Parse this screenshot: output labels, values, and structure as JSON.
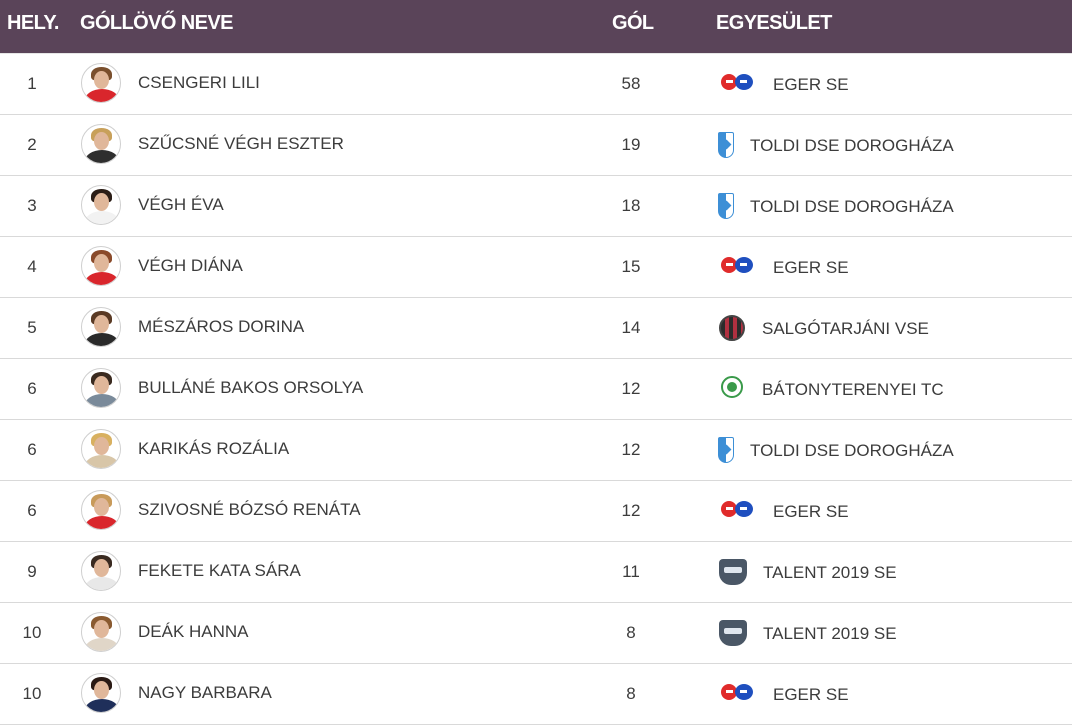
{
  "header": {
    "rank": "HELY.",
    "name": "GÓLLÖVŐ NEVE",
    "goals": "GÓL",
    "club": "EGYESÜLET"
  },
  "rows": [
    {
      "rank": "1",
      "name": "CSENGERI LILI",
      "goals": "58",
      "club": "EGER SE"
    },
    {
      "rank": "2",
      "name": "SZŰCSNÉ VÉGH ESZTER",
      "goals": "19",
      "club": "TOLDI DSE DOROGHÁZA"
    },
    {
      "rank": "3",
      "name": "VÉGH ÉVA",
      "goals": "18",
      "club": "TOLDI DSE DOROGHÁZA"
    },
    {
      "rank": "4",
      "name": "VÉGH DIÁNA",
      "goals": "15",
      "club": "EGER SE"
    },
    {
      "rank": "5",
      "name": "MÉSZÁROS DORINA",
      "goals": "14",
      "club": "SALGÓTARJÁNI VSE"
    },
    {
      "rank": "6",
      "name": "BULLÁNÉ BAKOS ORSOLYA",
      "goals": "12",
      "club": "BÁTONYTERENYEI TC"
    },
    {
      "rank": "6",
      "name": "KARIKÁS ROZÁLIA",
      "goals": "12",
      "club": "TOLDI DSE DOROGHÁZA"
    },
    {
      "rank": "6",
      "name": "SZIVOSNÉ BÓZSÓ RENÁTA",
      "goals": "12",
      "club": "EGER SE"
    },
    {
      "rank": "9",
      "name": "FEKETE KATA SÁRA",
      "goals": "11",
      "club": "TALENT 2019 SE"
    },
    {
      "rank": "10",
      "name": "DEÁK HANNA",
      "goals": "8",
      "club": "TALENT 2019 SE"
    },
    {
      "rank": "10",
      "name": "NAGY BARBARA",
      "goals": "8",
      "club": "EGER SE"
    }
  ],
  "colors": {
    "header_bg": "#5a4459",
    "eger_red": "#e02b2b",
    "eger_blue": "#1f4fbf",
    "toldi_blue": "#3d8fd6"
  }
}
